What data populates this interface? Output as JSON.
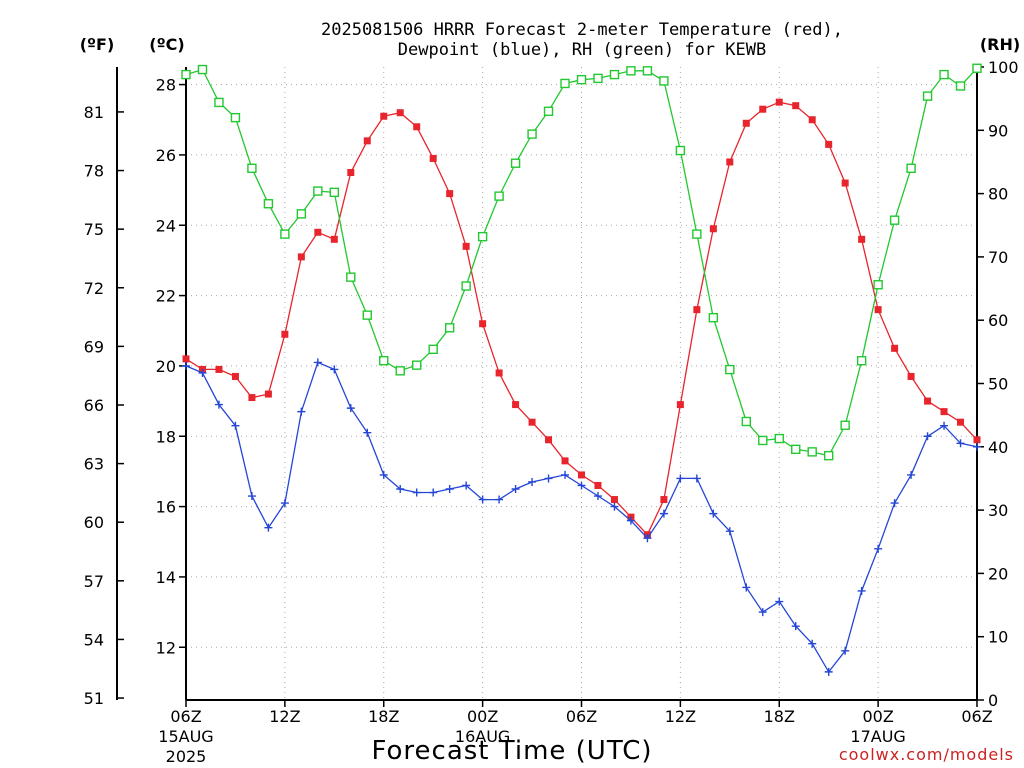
{
  "chart_data": {
    "type": "line",
    "title": {
      "line1": "2025081506 HRRR Forecast 2-meter Temperature (red),",
      "line2": "Dewpoint (blue), RH (green) for KEWB"
    },
    "units": {
      "fahrenheit": "(ºF)",
      "celsius": "(ºC)",
      "rh": "(RH)"
    },
    "xlabel": "Forecast Time (UTC)",
    "credit": "coolwx.com/models",
    "x_range_hours": [
      0,
      48
    ],
    "x_ticks": [
      {
        "h": 0,
        "label": "06Z",
        "sub1": "15AUG",
        "sub2": "2025"
      },
      {
        "h": 6,
        "label": "12Z"
      },
      {
        "h": 12,
        "label": "18Z"
      },
      {
        "h": 18,
        "label": "00Z",
        "sub1": "16AUG"
      },
      {
        "h": 24,
        "label": "06Z"
      },
      {
        "h": 30,
        "label": "12Z"
      },
      {
        "h": 36,
        "label": "18Z"
      },
      {
        "h": 42,
        "label": "00Z",
        "sub1": "17AUG"
      },
      {
        "h": 48,
        "label": "06Z"
      }
    ],
    "celsius_axis": {
      "range": [
        10.5,
        28.5
      ],
      "ticks": [
        12,
        14,
        16,
        18,
        20,
        22,
        24,
        26,
        28
      ]
    },
    "fahrenheit_axis": {
      "ticks": [
        51,
        54,
        57,
        60,
        63,
        66,
        69,
        72,
        75,
        78,
        81
      ]
    },
    "rh_axis": {
      "range": [
        0,
        100
      ],
      "ticks": [
        0,
        10,
        20,
        30,
        40,
        50,
        60,
        70,
        80,
        90,
        100
      ]
    },
    "grid": true,
    "series": [
      {
        "name": "Temperature",
        "color": "#e8242c",
        "axis": "celsius",
        "marker": "filled-square",
        "values": [
          20.2,
          19.9,
          19.9,
          19.7,
          19.1,
          19.2,
          20.9,
          23.1,
          23.8,
          23.6,
          25.5,
          26.4,
          27.1,
          27.2,
          26.8,
          25.9,
          24.9,
          23.4,
          21.2,
          19.8,
          18.9,
          18.4,
          17.9,
          17.3,
          16.9,
          16.6,
          16.2,
          15.7,
          15.2,
          16.2,
          18.9,
          21.6,
          23.9,
          25.8,
          26.9,
          27.3,
          27.5,
          27.4,
          27.0,
          26.3,
          25.2,
          23.6,
          21.6,
          20.5,
          19.7,
          19.0,
          18.7,
          18.4,
          17.9
        ]
      },
      {
        "name": "Dewpoint",
        "color": "#2446d6",
        "axis": "celsius",
        "marker": "plus",
        "values": [
          20.0,
          19.8,
          18.9,
          18.3,
          16.3,
          15.4,
          16.1,
          18.7,
          20.1,
          19.9,
          18.8,
          18.1,
          16.9,
          16.5,
          16.4,
          16.4,
          16.5,
          16.6,
          16.2,
          16.2,
          16.5,
          16.7,
          16.8,
          16.9,
          16.6,
          16.3,
          16.0,
          15.6,
          15.1,
          15.8,
          16.8,
          16.8,
          15.8,
          15.3,
          13.7,
          13.0,
          13.3,
          12.6,
          12.1,
          11.3,
          11.9,
          13.6,
          14.8,
          16.1,
          16.9,
          18.0,
          18.3,
          17.8,
          17.7
        ]
      },
      {
        "name": "RH",
        "color": "#22c830",
        "axis": "rh",
        "marker": "open-square",
        "values": [
          98.8,
          99.6,
          94.4,
          92.0,
          84.0,
          78.4,
          73.6,
          76.8,
          80.4,
          80.2,
          66.8,
          60.8,
          53.6,
          52.0,
          52.9,
          55.4,
          58.8,
          65.4,
          73.2,
          79.6,
          84.8,
          89.4,
          93.0,
          97.4,
          98.0,
          98.2,
          98.8,
          99.4,
          99.4,
          97.8,
          86.8,
          73.6,
          60.4,
          52.2,
          44.0,
          41.0,
          41.3,
          39.6,
          39.2,
          38.6,
          43.4,
          53.6,
          65.6,
          75.8,
          84.0,
          95.4,
          98.8,
          97.0,
          99.8
        ]
      }
    ]
  }
}
